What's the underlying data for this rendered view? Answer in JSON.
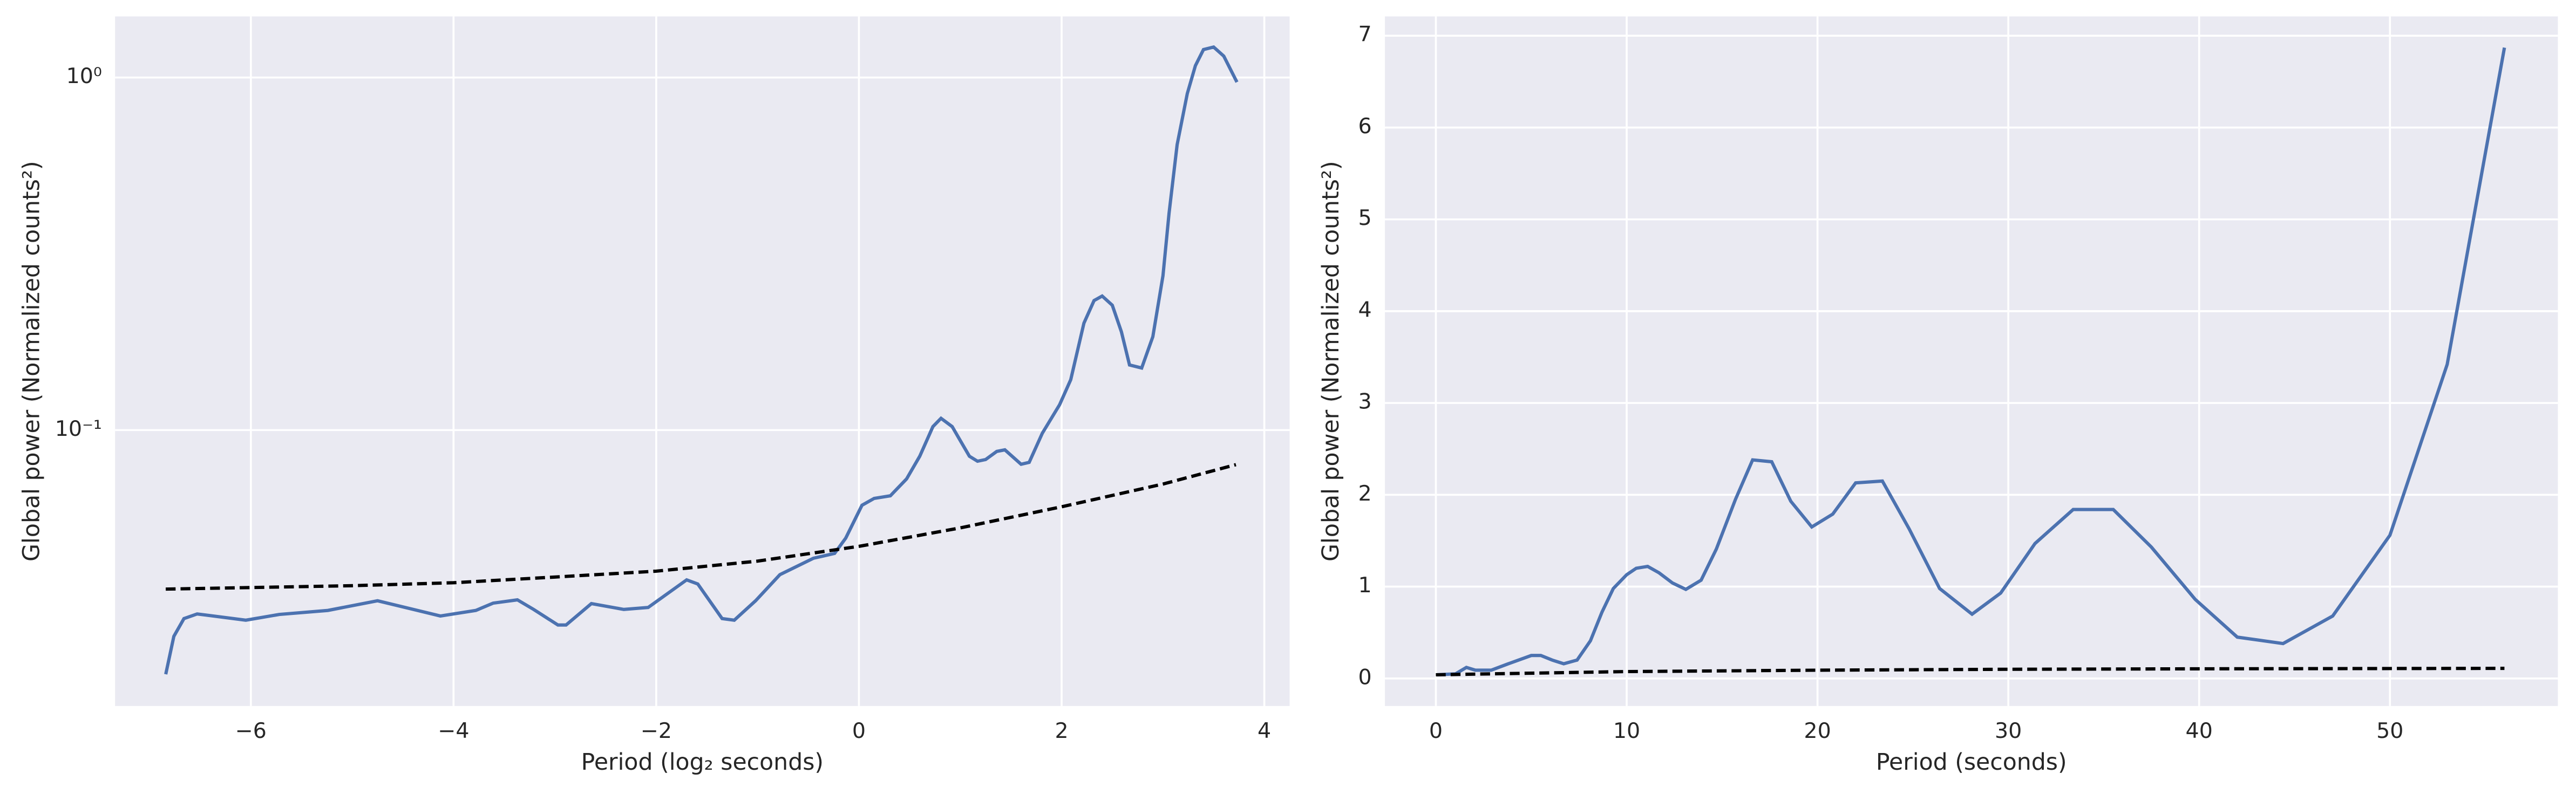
{
  "chart_data": [
    {
      "type": "line",
      "yscale": "log",
      "grid": true,
      "xlabel": "Period (log₂ seconds)",
      "ylabel": "Global power (Normalized counts²)",
      "xlim": [
        -7.34,
        4.25
      ],
      "ylim": [
        0.0165,
        1.49
      ],
      "xticks": [
        {
          "value": -6,
          "label": "−6"
        },
        {
          "value": -4,
          "label": "−4"
        },
        {
          "value": -2,
          "label": "−2"
        },
        0,
        2,
        4
      ],
      "yticks": [
        {
          "value": 0.1,
          "label": "10⁻¹"
        },
        {
          "value": 1,
          "label": "10⁰"
        }
      ],
      "series": [
        {
          "color": "#4c72b0",
          "linestyle": "solid",
          "x": [
            -6.84,
            -6.76,
            -6.66,
            -6.53,
            -6.05,
            -5.72,
            -5.24,
            -4.75,
            -4.13,
            -3.78,
            -3.61,
            -3.37,
            -3.21,
            -2.97,
            -2.89,
            -2.64,
            -2.32,
            -2.08,
            -1.7,
            -1.59,
            -1.35,
            -1.23,
            -1.02,
            -0.78,
            -0.45,
            -0.24,
            -0.13,
            0.03,
            0.15,
            0.31,
            0.47,
            0.6,
            0.73,
            0.81,
            0.92,
            1.09,
            1.17,
            1.25,
            1.36,
            1.44,
            1.6,
            1.68,
            1.81,
            1.98,
            2.09,
            2.22,
            2.32,
            2.4,
            2.5,
            2.59,
            2.67,
            2.79,
            2.9,
            3.0,
            3.06,
            3.14,
            3.24,
            3.32,
            3.4,
            3.5,
            3.6,
            3.73
          ],
          "values": [
            0.0203,
            0.026,
            0.0292,
            0.0301,
            0.0289,
            0.03,
            0.0308,
            0.0328,
            0.0297,
            0.0308,
            0.0323,
            0.033,
            0.031,
            0.028,
            0.028,
            0.0322,
            0.031,
            0.0314,
            0.0376,
            0.0366,
            0.0292,
            0.0289,
            0.0328,
            0.0389,
            0.0433,
            0.0447,
            0.0494,
            0.0612,
            0.064,
            0.0651,
            0.0727,
            0.0843,
            0.1023,
            0.108,
            0.1023,
            0.0843,
            0.0816,
            0.0825,
            0.087,
            0.0879,
            0.08,
            0.081,
            0.098,
            0.118,
            0.139,
            0.201,
            0.233,
            0.24,
            0.226,
            0.19,
            0.153,
            0.15,
            0.184,
            0.274,
            0.412,
            0.645,
            0.9,
            1.08,
            1.2,
            1.22,
            1.15,
            0.97
          ]
        },
        {
          "color": "#000000",
          "linestyle": "dashed",
          "x": [
            -6.84,
            -5,
            -4,
            -3,
            -2,
            -1,
            0,
            1,
            2,
            3,
            3.72
          ],
          "values": [
            0.0354,
            0.0362,
            0.0369,
            0.0383,
            0.0398,
            0.0425,
            0.0468,
            0.0528,
            0.0606,
            0.0703,
            0.0798
          ]
        }
      ]
    },
    {
      "type": "line",
      "grid": true,
      "xlabel": "Period (seconds)",
      "ylabel": "Global power (Normalized counts²)",
      "xlim": [
        -2.67,
        58.8
      ],
      "ylim": [
        -0.3,
        7.21
      ],
      "xticks": [
        0,
        10,
        20,
        30,
        40,
        50
      ],
      "yticks": [
        0,
        1,
        2,
        3,
        4,
        5,
        6,
        7
      ],
      "series": [
        {
          "color": "#4c72b0",
          "linestyle": "solid",
          "x": [
            0,
            1.03,
            1.6,
            2.07,
            2.9,
            3.8,
            5.0,
            5.5,
            6.1,
            6.7,
            7.4,
            8.1,
            8.7,
            9.3,
            10,
            10.5,
            11.1,
            11.7,
            12.4,
            13.1,
            13.9,
            14.7,
            15.7,
            16.6,
            17.6,
            18.6,
            19.7,
            20.8,
            22.0,
            23.4,
            24.8,
            26.4,
            28.1,
            29.6,
            31.4,
            33.4,
            35.5,
            37.5,
            39.8,
            42.0,
            44.4,
            47.0,
            50.0,
            53.0,
            56.0
          ],
          "values": [
            0.04,
            0.05,
            0.12,
            0.09,
            0.09,
            0.16,
            0.25,
            0.25,
            0.2,
            0.16,
            0.2,
            0.41,
            0.72,
            0.98,
            1.13,
            1.2,
            1.22,
            1.15,
            1.04,
            0.97,
            1.07,
            1.41,
            1.95,
            2.38,
            2.36,
            1.93,
            1.65,
            1.79,
            2.13,
            2.15,
            1.63,
            0.98,
            0.7,
            0.93,
            1.47,
            1.84,
            1.84,
            1.43,
            0.86,
            0.45,
            0.38,
            0.68,
            1.56,
            3.42,
            6.87
          ]
        },
        {
          "color": "#000000",
          "linestyle": "dashed",
          "x": [
            0,
            10,
            20,
            30,
            40,
            56
          ],
          "values": [
            0.04,
            0.075,
            0.09,
            0.1,
            0.105,
            0.11
          ]
        }
      ]
    }
  ]
}
